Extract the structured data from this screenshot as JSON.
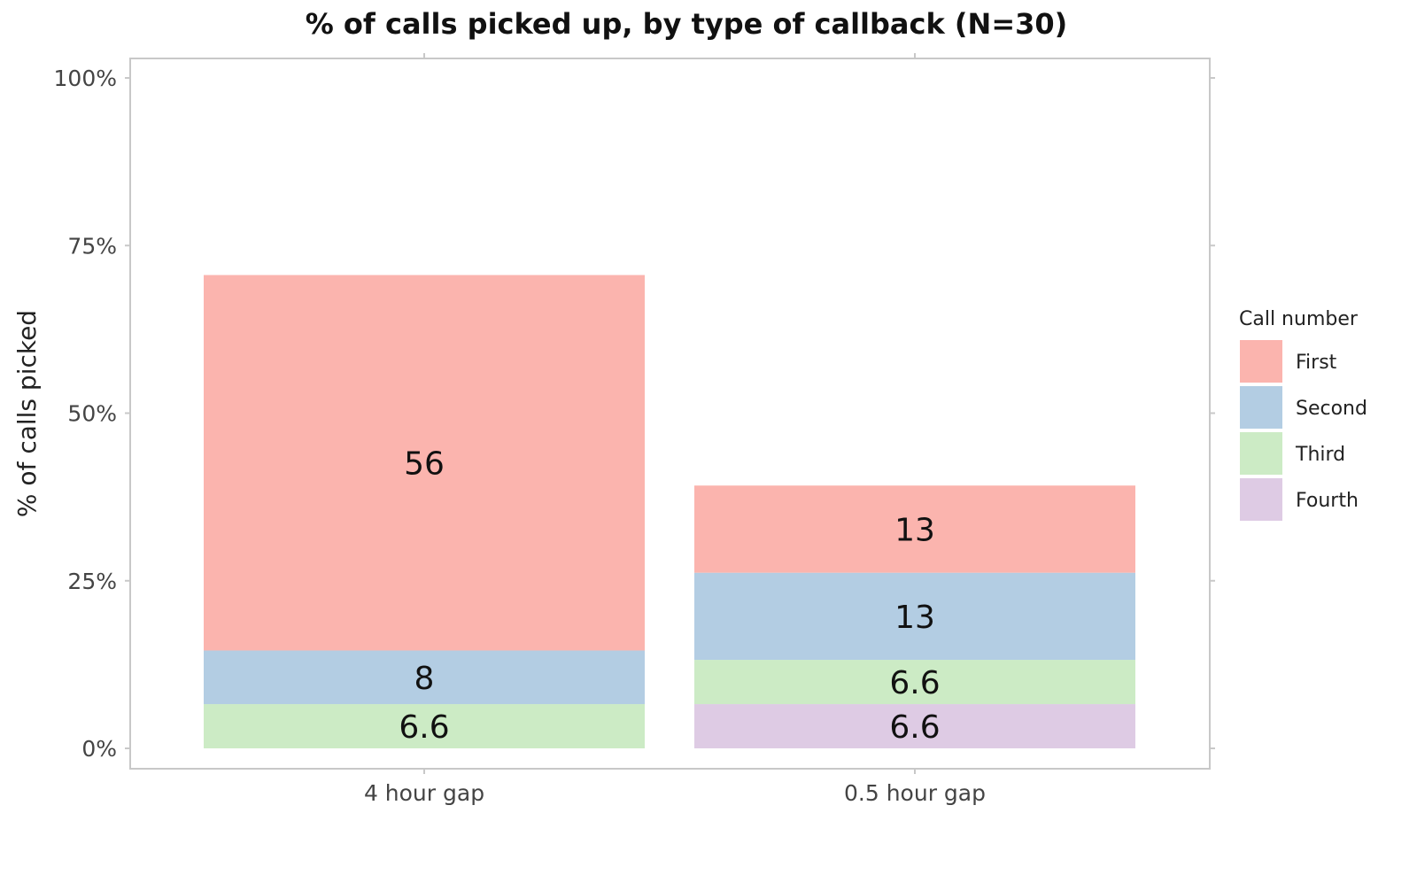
{
  "chart_data": {
    "type": "bar",
    "stacked": true,
    "title": "% of calls picked up, by type of callback (N=30)",
    "xlabel": "",
    "ylabel": "% of calls picked",
    "categories": [
      "4 hour gap",
      "0.5 hour gap"
    ],
    "ylim": [
      0,
      100
    ],
    "yticks": [
      0,
      25,
      50,
      75,
      100
    ],
    "ytick_labels": [
      "0%",
      "25%",
      "50%",
      "75%",
      "100%"
    ],
    "grid": false,
    "legend": {
      "title": "Call number",
      "position": "right"
    },
    "series": [
      {
        "name": "Fourth",
        "color": "#DECBE4",
        "values": [
          0,
          6.6
        ],
        "labels": [
          "",
          "6.6"
        ]
      },
      {
        "name": "Third",
        "color": "#CCEBC5",
        "values": [
          6.6,
          6.6
        ],
        "labels": [
          "6.6",
          "6.6"
        ]
      },
      {
        "name": "Second",
        "color": "#B3CDE3",
        "values": [
          8,
          13
        ],
        "labels": [
          "8",
          "13"
        ]
      },
      {
        "name": "First",
        "color": "#FBB4AE",
        "values": [
          56,
          13
        ],
        "labels": [
          "56",
          "13"
        ]
      }
    ],
    "legend_order": [
      "First",
      "Second",
      "Third",
      "Fourth"
    ]
  }
}
